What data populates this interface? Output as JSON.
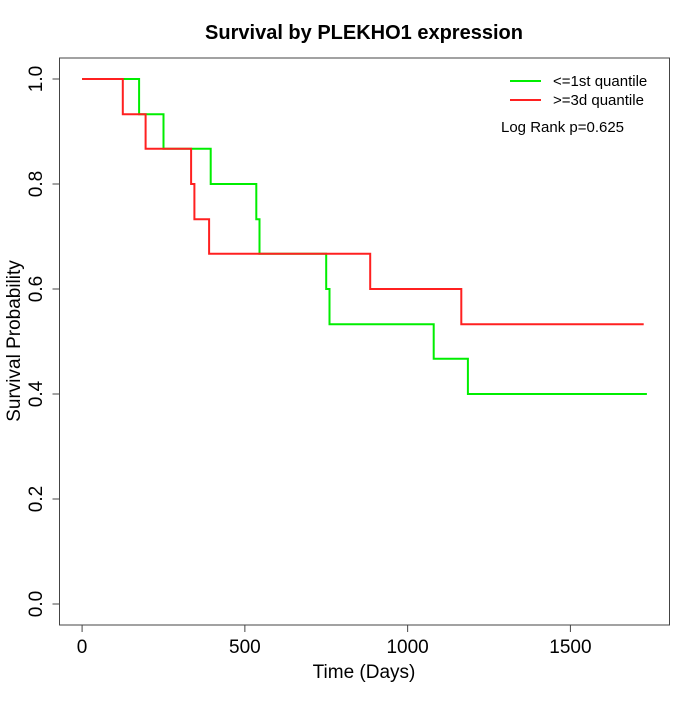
{
  "page": {
    "background": "#ffffff"
  },
  "chart_data": {
    "type": "line",
    "variant": "kaplan_meier_step",
    "title": "Survival by PLEKHO1 expression",
    "xlabel": "Time (Days)",
    "ylabel": "Survival Probability",
    "xlim": [
      0,
      1735
    ],
    "ylim": [
      0,
      1
    ],
    "x_ticks": [
      0,
      500,
      1000,
      1500
    ],
    "x_tick_labels": [
      "0",
      "500",
      "1000",
      "1500"
    ],
    "y_ticks": [
      0.0,
      0.2,
      0.4,
      0.6,
      0.8,
      1.0
    ],
    "y_tick_labels": [
      "0.0",
      "0.2",
      "0.4",
      "0.6",
      "0.8",
      "1.0"
    ],
    "grid": false,
    "legend_position": "top-right",
    "annotation": "Log Rank p=0.625",
    "series": [
      {
        "name": "<=1st quantile",
        "color": "#00ee00",
        "points": [
          [
            0,
            1.0
          ],
          [
            175,
            0.933
          ],
          [
            250,
            0.867
          ],
          [
            395,
            0.8
          ],
          [
            535,
            0.733
          ],
          [
            545,
            0.667
          ],
          [
            750,
            0.6
          ],
          [
            760,
            0.533
          ],
          [
            1080,
            0.467
          ],
          [
            1185,
            0.4
          ],
          [
            1735,
            0.4
          ]
        ]
      },
      {
        "name": ">=3d quantile",
        "color": "#ff2020",
        "points": [
          [
            0,
            1.0
          ],
          [
            125,
            0.933
          ],
          [
            195,
            0.867
          ],
          [
            335,
            0.8
          ],
          [
            345,
            0.733
          ],
          [
            390,
            0.667
          ],
          [
            885,
            0.6
          ],
          [
            1165,
            0.533
          ],
          [
            1725,
            0.533
          ]
        ]
      }
    ]
  }
}
